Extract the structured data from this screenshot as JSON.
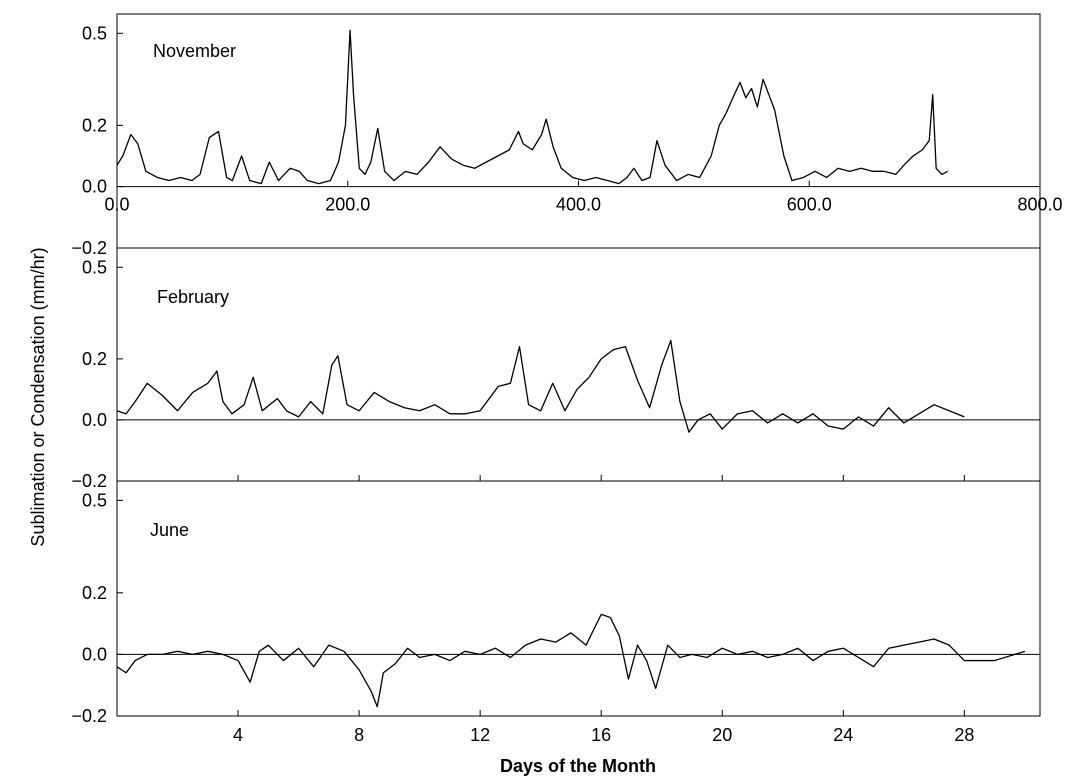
{
  "chart_data": {
    "type": "line",
    "ylabel": "Sublimation or Condensation (mm/hr)",
    "xlabel": "Days of the Month",
    "top_x_ticks": [
      "0.0",
      "200.0",
      "400.0",
      "600.0",
      "800.0"
    ],
    "top_x_tick_values": [
      0,
      200,
      400,
      600,
      800
    ],
    "bottom_x_ticks": [
      "4",
      "8",
      "12",
      "16",
      "20",
      "24",
      "28"
    ],
    "bottom_x_tick_values": [
      4,
      8,
      12,
      16,
      20,
      24,
      28
    ],
    "panels": [
      {
        "label": "November",
        "x_unit": "hours",
        "xlim": [
          0,
          800
        ],
        "ylim": [
          -0.2,
          0.55
        ],
        "y_ticks": [
          "0.5",
          "0.2",
          "0.0",
          "−0.2"
        ],
        "y_tick_values": [
          0.5,
          0.2,
          0.0,
          -0.2
        ],
        "series": [
          {
            "x": [
              0,
              5,
              12,
              18,
              25,
              35,
              45,
              55,
              65,
              72,
              80,
              88,
              95,
              100,
              108,
              115,
              125,
              132,
              140,
              150,
              158,
              165,
              175,
              185,
              192,
              198,
              202,
              205,
              210,
              215,
              220,
              226,
              232,
              240,
              250,
              260,
              270,
              280,
              290,
              300,
              310,
              320,
              330,
              340,
              348,
              352,
              360,
              368,
              372,
              378,
              385,
              395,
              405,
              415,
              425,
              435,
              442,
              448,
              455,
              462,
              468,
              475,
              485,
              495,
              505,
              515,
              522,
              528,
              535,
              540,
              545,
              550,
              555,
              560,
              565,
              570,
              578,
              585,
              595,
              605,
              615,
              625,
              635,
              645,
              655,
              665,
              675,
              682,
              690,
              698,
              704,
              707,
              710,
              715,
              720
            ],
            "y": [
              0.07,
              0.1,
              0.17,
              0.14,
              0.05,
              0.03,
              0.02,
              0.03,
              0.02,
              0.04,
              0.16,
              0.18,
              0.03,
              0.02,
              0.1,
              0.02,
              0.01,
              0.08,
              0.02,
              0.06,
              0.05,
              0.02,
              0.01,
              0.02,
              0.08,
              0.2,
              0.51,
              0.3,
              0.06,
              0.04,
              0.08,
              0.19,
              0.05,
              0.02,
              0.05,
              0.04,
              0.08,
              0.13,
              0.09,
              0.07,
              0.06,
              0.08,
              0.1,
              0.12,
              0.18,
              0.14,
              0.12,
              0.17,
              0.22,
              0.13,
              0.06,
              0.03,
              0.02,
              0.03,
              0.02,
              0.01,
              0.03,
              0.06,
              0.02,
              0.03,
              0.15,
              0.07,
              0.02,
              0.04,
              0.03,
              0.1,
              0.2,
              0.24,
              0.3,
              0.34,
              0.29,
              0.32,
              0.26,
              0.35,
              0.3,
              0.25,
              0.1,
              0.02,
              0.03,
              0.05,
              0.03,
              0.06,
              0.05,
              0.06,
              0.05,
              0.05,
              0.04,
              0.07,
              0.1,
              0.12,
              0.15,
              0.3,
              0.06,
              0.04,
              0.05
            ]
          }
        ]
      },
      {
        "label": "February",
        "x_unit": "days",
        "xlim": [
          0,
          30.5
        ],
        "ylim": [
          -0.2,
          0.55
        ],
        "y_ticks": [
          "0.5",
          "0.2",
          "0.0",
          "−0.2"
        ],
        "y_tick_values": [
          0.5,
          0.2,
          0.0,
          -0.2
        ],
        "series": [
          {
            "x": [
              0,
              0.3,
              0.6,
              1.0,
              1.5,
              2.0,
              2.5,
              3.0,
              3.3,
              3.5,
              3.8,
              4.2,
              4.5,
              4.8,
              5.3,
              5.6,
              6.0,
              6.4,
              6.8,
              7.1,
              7.3,
              7.6,
              8.0,
              8.5,
              9.0,
              9.5,
              10.0,
              10.5,
              11.0,
              11.5,
              12.0,
              12.3,
              12.6,
              13.0,
              13.3,
              13.6,
              14.0,
              14.4,
              14.8,
              15.2,
              15.6,
              16.0,
              16.4,
              16.8,
              17.2,
              17.6,
              18.0,
              18.3,
              18.6,
              18.9,
              19.2,
              19.6,
              20.0,
              20.5,
              21.0,
              21.5,
              22.0,
              22.5,
              23.0,
              23.5,
              24.0,
              24.5,
              25.0,
              25.5,
              26.0,
              26.5,
              27.0,
              27.5,
              28.0
            ],
            "y": [
              0.03,
              0.02,
              0.06,
              0.12,
              0.08,
              0.03,
              0.09,
              0.12,
              0.16,
              0.06,
              0.02,
              0.05,
              0.14,
              0.03,
              0.07,
              0.03,
              0.01,
              0.06,
              0.02,
              0.18,
              0.21,
              0.05,
              0.03,
              0.09,
              0.06,
              0.04,
              0.03,
              0.05,
              0.02,
              0.02,
              0.03,
              0.07,
              0.11,
              0.12,
              0.24,
              0.05,
              0.03,
              0.12,
              0.03,
              0.1,
              0.14,
              0.2,
              0.23,
              0.24,
              0.13,
              0.04,
              0.18,
              0.26,
              0.06,
              -0.04,
              0.0,
              0.02,
              -0.03,
              0.02,
              0.03,
              -0.01,
              0.02,
              -0.01,
              0.02,
              -0.02,
              -0.03,
              0.01,
              -0.02,
              0.04,
              -0.01,
              0.02,
              0.05,
              0.03,
              0.01
            ]
          }
        ]
      },
      {
        "label": "June",
        "x_unit": "days",
        "xlim": [
          0,
          30.5
        ],
        "ylim": [
          -0.2,
          0.55
        ],
        "y_ticks": [
          "0.5",
          "0.2",
          "0.0",
          "−0.2"
        ],
        "y_tick_values": [
          0.5,
          0.2,
          0.0,
          -0.2
        ],
        "series": [
          {
            "x": [
              0,
              0.3,
              0.6,
              1.0,
              1.5,
              2.0,
              2.5,
              3.0,
              3.5,
              4.0,
              4.4,
              4.7,
              5.0,
              5.5,
              6.0,
              6.5,
              7.0,
              7.5,
              8.0,
              8.4,
              8.6,
              8.8,
              9.2,
              9.6,
              10.0,
              10.5,
              11.0,
              11.5,
              12.0,
              12.5,
              13.0,
              13.5,
              14.0,
              14.5,
              15.0,
              15.5,
              16.0,
              16.3,
              16.6,
              16.9,
              17.2,
              17.5,
              17.8,
              18.2,
              18.6,
              19.0,
              19.5,
              20.0,
              20.5,
              21.0,
              21.5,
              22.0,
              22.5,
              23.0,
              23.5,
              24.0,
              24.5,
              25.0,
              25.5,
              26.0,
              26.5,
              27.0,
              27.5,
              28.0,
              29.0,
              30.0
            ],
            "y": [
              -0.04,
              -0.06,
              -0.02,
              0.0,
              0.0,
              0.01,
              0.0,
              0.01,
              0.0,
              -0.02,
              -0.09,
              0.01,
              0.03,
              -0.02,
              0.02,
              -0.04,
              0.03,
              0.01,
              -0.05,
              -0.12,
              -0.17,
              -0.06,
              -0.03,
              0.02,
              -0.01,
              0.0,
              -0.02,
              0.01,
              0.0,
              0.02,
              -0.01,
              0.03,
              0.05,
              0.04,
              0.07,
              0.03,
              0.13,
              0.12,
              0.06,
              -0.08,
              0.03,
              -0.02,
              -0.11,
              0.03,
              -0.01,
              0.0,
              -0.01,
              0.02,
              0.0,
              0.01,
              -0.01,
              0.0,
              0.02,
              -0.02,
              0.01,
              0.02,
              -0.01,
              -0.04,
              0.02,
              0.03,
              0.04,
              0.05,
              0.03,
              -0.02,
              -0.02,
              0.01
            ]
          }
        ]
      }
    ]
  }
}
